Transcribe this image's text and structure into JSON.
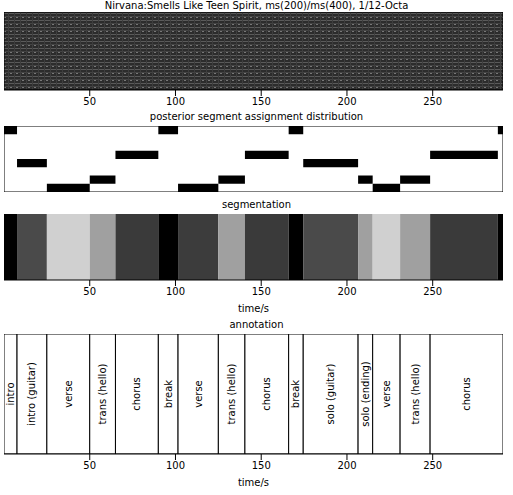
{
  "chart_data": [
    {
      "type": "heatmap",
      "title": "Nirvana:Smells Like Teen Spirit, ms(200)/ms(400), 1/12-Octa",
      "xlim": [
        0,
        291
      ],
      "xticks": [
        50,
        100,
        150,
        200,
        250
      ],
      "tick_labels": "x"
    },
    {
      "type": "posterior",
      "title": "posterior segment assignment distribution",
      "xlim": [
        0,
        291
      ],
      "xticks": [
        50,
        100,
        150,
        200,
        250
      ],
      "ylim": [
        0,
        8
      ],
      "tick_labels": false,
      "color": "#000000",
      "cells": [
        {
          "start": 0,
          "end": 7.6,
          "row": 0
        },
        {
          "start": 7.6,
          "end": 25,
          "row": 4
        },
        {
          "start": 25,
          "end": 50,
          "row": 7
        },
        {
          "start": 50,
          "end": 65,
          "row": 6
        },
        {
          "start": 65,
          "end": 90,
          "row": 3
        },
        {
          "start": 90,
          "end": 101.5,
          "row": 0
        },
        {
          "start": 101.5,
          "end": 125,
          "row": 7
        },
        {
          "start": 125,
          "end": 140.5,
          "row": 6
        },
        {
          "start": 140.5,
          "end": 166,
          "row": 3
        },
        {
          "start": 166,
          "end": 174.5,
          "row": 0
        },
        {
          "start": 174.5,
          "end": 206.5,
          "row": 4
        },
        {
          "start": 206.5,
          "end": 215,
          "row": 6
        },
        {
          "start": 215,
          "end": 231,
          "row": 7
        },
        {
          "start": 231,
          "end": 248.5,
          "row": 6
        },
        {
          "start": 248.5,
          "end": 288,
          "row": 3
        },
        {
          "start": 288,
          "end": 291,
          "row": 0
        }
      ]
    },
    {
      "type": "segments",
      "title": "segmentation",
      "x_label": "time/s",
      "xlim": [
        0,
        291
      ],
      "xticks": [
        50,
        100,
        150,
        200,
        250
      ],
      "tick_labels": "x",
      "segments": [
        {
          "start": 0,
          "end": 7.6
        },
        {
          "start": 7.6,
          "end": 25
        },
        {
          "start": 25,
          "end": 50
        },
        {
          "start": 50,
          "end": 65
        },
        {
          "start": 65,
          "end": 90
        },
        {
          "start": 90,
          "end": 101.5
        },
        {
          "start": 101.5,
          "end": 125
        },
        {
          "start": 125,
          "end": 140.5
        },
        {
          "start": 140.5,
          "end": 166
        },
        {
          "start": 166,
          "end": 174.5
        },
        {
          "start": 174.5,
          "end": 206.5
        },
        {
          "start": 206.5,
          "end": 215
        },
        {
          "start": 215,
          "end": 231
        },
        {
          "start": 231,
          "end": 248.5
        },
        {
          "start": 248.5,
          "end": 288
        },
        {
          "start": 288,
          "end": 291
        }
      ],
      "colors": [
        "#000000",
        "#4a4a4a",
        "#d0d0d0",
        "#a0a0a0",
        "#3a3a3a",
        "#000000",
        "#3c3c3c",
        "#a0a0a0",
        "#3a3a3a",
        "#000000",
        "#4a4a4a",
        "#a0a0a0",
        "#d0d0d0",
        "#a0a0a0",
        "#3a3a3a",
        "#000000"
      ]
    },
    {
      "type": "annotation",
      "title": "annotation",
      "x_label": "time/s",
      "xlim": [
        0,
        291
      ],
      "xticks": [
        50,
        100,
        150,
        200,
        250
      ],
      "tick_labels": "x",
      "segments": [
        {
          "start": 0,
          "end": 7.6,
          "label": "intro"
        },
        {
          "start": 7.6,
          "end": 25,
          "label": "intro (guitar)"
        },
        {
          "start": 25,
          "end": 50,
          "label": "verse"
        },
        {
          "start": 50,
          "end": 65,
          "label": "trans (hello)"
        },
        {
          "start": 65,
          "end": 90,
          "label": "chorus"
        },
        {
          "start": 90,
          "end": 101.5,
          "label": "break"
        },
        {
          "start": 101.5,
          "end": 125,
          "label": "verse"
        },
        {
          "start": 125,
          "end": 140.5,
          "label": "trans (hello)"
        },
        {
          "start": 140.5,
          "end": 166,
          "label": "chorus"
        },
        {
          "start": 166,
          "end": 174.5,
          "label": "break"
        },
        {
          "start": 174.5,
          "end": 206.5,
          "label": "solo (guitar)"
        },
        {
          "start": 206.5,
          "end": 215,
          "label": "solo (ending)"
        },
        {
          "start": 215,
          "end": 231,
          "label": "verse"
        },
        {
          "start": 231,
          "end": 248.5,
          "label": "trans (hello)"
        },
        {
          "start": 248.5,
          "end": 291,
          "label": "chorus"
        }
      ]
    }
  ]
}
